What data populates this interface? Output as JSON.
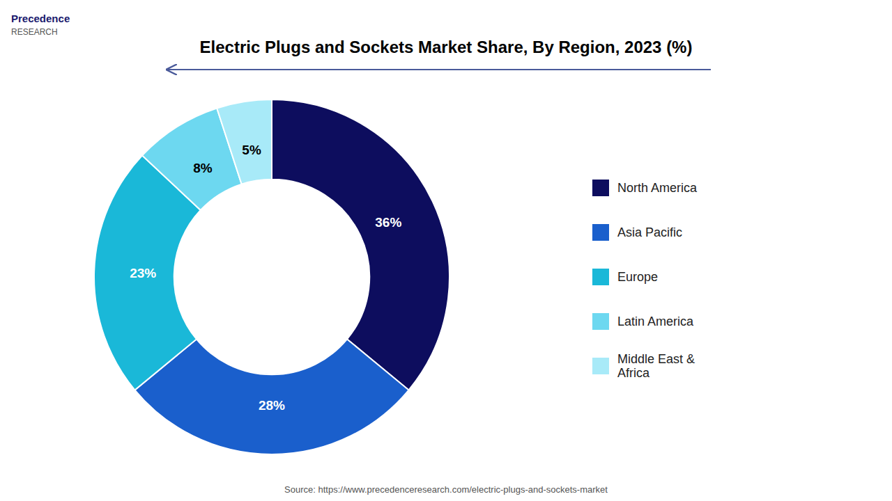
{
  "chart_data": {
    "type": "donut",
    "title": "Electric Plugs and Sockets Market Share, By Region, 2023 (%)",
    "categories": [
      "North America",
      "Asia Pacific",
      "Europe",
      "Latin America",
      "Middle East &\nAfrica"
    ],
    "values": [
      36,
      28,
      23,
      8,
      5
    ],
    "value_labels": [
      "36%",
      "28%",
      "23%",
      "8%",
      "5%"
    ],
    "colors": [
      "#0d0d5e",
      "#1a5fcc",
      "#1ab8d8",
      "#6dd8f0",
      "#a8eaf8"
    ],
    "data_labels": true,
    "legend": "right",
    "annotations": [
      "Precedence",
      "RESEARCH",
      "Source: https://www.precedenceresearch.com/electric-plugs-and-sockets-market"
    ]
  }
}
